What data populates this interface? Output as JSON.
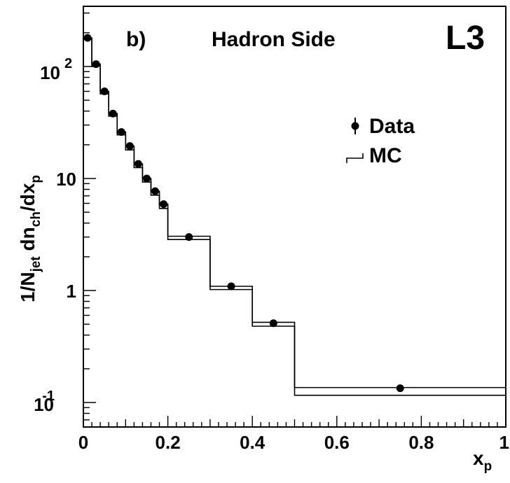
{
  "chart_data": {
    "type": "scatter",
    "panel_label": "b)",
    "title": "Hadron Side",
    "experiment_label": "L3",
    "xlabel": {
      "main": "x",
      "sub": "p"
    },
    "ylabel": {
      "p1": "1/N",
      "s1": "jet",
      "p2": " dn",
      "s2": "ch",
      "p3": "/dx",
      "s3": "p"
    },
    "xlim": [
      0,
      1
    ],
    "ylim": [
      0.06,
      300
    ],
    "log_y": true,
    "x_ticks": [
      "0",
      "0.2",
      "0.4",
      "0.6",
      "0.8",
      "1"
    ],
    "y_ticks": [
      {
        "base": "10",
        "exp": "-1"
      },
      {
        "base": "1",
        "exp": ""
      },
      {
        "base": "10",
        "exp": ""
      },
      {
        "base": "10",
        "exp": "2"
      }
    ],
    "legend": {
      "position": "top-right",
      "entries": [
        "Data",
        "MC"
      ]
    },
    "series": [
      {
        "name": "Data",
        "style": "points",
        "x": [
          0.01,
          0.03,
          0.05,
          0.07,
          0.09,
          0.11,
          0.13,
          0.15,
          0.17,
          0.19,
          0.25,
          0.35,
          0.45,
          0.75
        ],
        "y": [
          180,
          105,
          60,
          38,
          26,
          19.5,
          13.5,
          10,
          7.7,
          5.9,
          3.0,
          1.09,
          0.51,
          0.134
        ]
      },
      {
        "name": "MC",
        "style": "histogram-band",
        "bin_edges": [
          0,
          0.02,
          0.04,
          0.06,
          0.08,
          0.1,
          0.12,
          0.14,
          0.16,
          0.18,
          0.2,
          0.3,
          0.4,
          0.5,
          1.0
        ],
        "upper": [
          180,
          105,
          60,
          38,
          26,
          19.5,
          13.5,
          10,
          7.7,
          5.9,
          3.05,
          1.09,
          0.52,
          0.136
        ],
        "lower": [
          175,
          101,
          57,
          36,
          24.5,
          18,
          12.5,
          9.3,
          7.1,
          5.4,
          2.85,
          1.02,
          0.48,
          0.116
        ]
      }
    ]
  }
}
